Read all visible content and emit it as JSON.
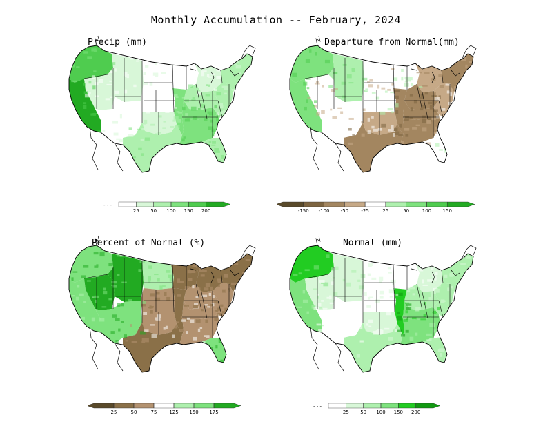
{
  "title": "Monthly Accumulation -- February, 2024",
  "panels": [
    {
      "id": "precip",
      "title": "Precip (mm)",
      "scale": "sequential",
      "colorbar": {
        "ticks": [
          "25",
          "50",
          "100",
          "150",
          "200"
        ],
        "colors": [
          "#ffffff",
          "#d8f7d8",
          "#aef0ae",
          "#7ee27e",
          "#4fcc4f",
          "#22aa22"
        ]
      },
      "regions": {
        "northwest": 4,
        "california": 5,
        "great_basin": 1,
        "rockies": 1,
        "southwest": 0,
        "north_plains": 0,
        "central_plains": 0,
        "south_plains": 1,
        "texas_gulf": 2,
        "upper_midwest": 0,
        "great_lakes": 1,
        "ohio_valley": 2,
        "tennessee_valley": 3,
        "lower_miss": 3,
        "southeast": 3,
        "florida": 2,
        "mid_atlantic": 2,
        "northeast": 2
      }
    },
    {
      "id": "departure",
      "title": "Departure from Normal(mm)",
      "scale": "diverging",
      "colorbar": {
        "ticks": [
          "-150",
          "-100",
          "-50",
          "-25",
          "25",
          "50",
          "100",
          "150"
        ],
        "colors": [
          "#5a4a2a",
          "#7d6440",
          "#a38660",
          "#c6a987",
          "#ffffff",
          "#aef0ae",
          "#7ee27e",
          "#4fcc4f",
          "#22aa22"
        ]
      },
      "regions": {
        "northwest": 2,
        "california": 2,
        "great_basin": 0,
        "rockies": 1,
        "southwest": 0,
        "north_plains": 0,
        "central_plains": 0,
        "south_plains": -1,
        "texas_gulf": -2,
        "upper_midwest": 0,
        "great_lakes": -1,
        "ohio_valley": -2,
        "tennessee_valley": -2,
        "lower_miss": -2,
        "southeast": -2,
        "florida": 0,
        "mid_atlantic": -1,
        "northeast": -2
      }
    },
    {
      "id": "percent",
      "title": "Percent of Normal (%)",
      "scale": "diverging",
      "colorbar": {
        "ticks": [
          "25",
          "50",
          "75",
          "125",
          "150",
          "175"
        ],
        "colors": [
          "#5a4a2a",
          "#8a7048",
          "#b39270",
          "#ffffff",
          "#aef0ae",
          "#7ee27e",
          "#22aa22"
        ]
      },
      "regions": {
        "northwest": 2,
        "california": 2,
        "great_basin": 3,
        "rockies": 3,
        "southwest": 2,
        "north_plains": 1,
        "central_plains": -1,
        "south_plains": -1,
        "texas_gulf": -2,
        "upper_midwest": -2,
        "great_lakes": -2,
        "ohio_valley": -1,
        "tennessee_valley": -1,
        "lower_miss": -2,
        "southeast": -1,
        "florida": 2,
        "mid_atlantic": -1,
        "northeast": -2
      }
    },
    {
      "id": "normal",
      "title": "Normal (mm)",
      "scale": "sequential",
      "colorbar": {
        "ticks": [
          "25",
          "50",
          "100",
          "150",
          "200"
        ],
        "colors": [
          "#ffffff",
          "#d8f7d8",
          "#aef0ae",
          "#7ee27e",
          "#22cc22",
          "#119911"
        ]
      },
      "regions": {
        "northwest": 4,
        "california": 3,
        "great_basin": 1,
        "rockies": 1,
        "southwest": 0,
        "north_plains": 0,
        "central_plains": 0,
        "south_plains": 1,
        "texas_gulf": 2,
        "upper_midwest": 0,
        "great_lakes": 1,
        "ohio_valley": 2,
        "tennessee_valley": 3,
        "lower_miss": 4,
        "southeast": 3,
        "florida": 2,
        "mid_atlantic": 2,
        "northeast": 2
      }
    }
  ]
}
